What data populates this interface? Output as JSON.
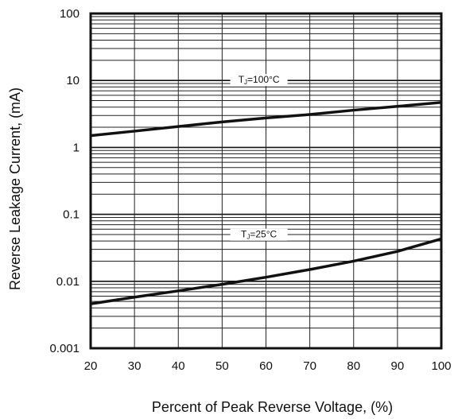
{
  "chart_data": {
    "type": "line",
    "xlabel": "Percent of Peak Reverse Voltage, (%)",
    "ylabel": "Reverse Leakage Current, (mA)",
    "x_ticks": [
      "20",
      "30",
      "40",
      "50",
      "60",
      "70",
      "80",
      "90",
      "100"
    ],
    "y_ticks": [
      "0.001",
      "0.01",
      "0.1",
      "1",
      "10",
      "100"
    ],
    "xlim": [
      20,
      100
    ],
    "ylim": [
      0.001,
      100
    ],
    "y_scale": "log",
    "grid": true,
    "series": [
      {
        "name": "TJ=100°C",
        "label_main": "T",
        "label_sub": "J",
        "label_rest": "=100°C",
        "x": [
          20,
          30,
          40,
          50,
          60,
          70,
          80,
          90,
          100
        ],
        "y": [
          1.5,
          1.75,
          2.05,
          2.4,
          2.75,
          3.1,
          3.6,
          4.1,
          4.7
        ]
      },
      {
        "name": "TJ=25°C",
        "label_main": "T",
        "label_sub": "J",
        "label_rest": "=25°C",
        "x": [
          20,
          30,
          40,
          50,
          60,
          70,
          80,
          90,
          100
        ],
        "y": [
          0.0046,
          0.0058,
          0.0072,
          0.009,
          0.0115,
          0.015,
          0.02,
          0.028,
          0.043
        ]
      }
    ]
  }
}
